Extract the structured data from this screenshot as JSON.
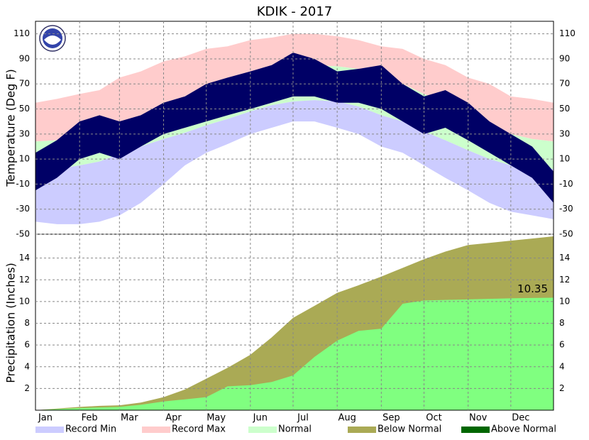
{
  "title": "KDIK - 2017",
  "legend": [
    {
      "name": "Record Min",
      "color": "#ccccff"
    },
    {
      "name": "Record Max",
      "color": "#ffcccc"
    },
    {
      "name": "Normal",
      "color": "#ccffcc"
    },
    {
      "name": "Below Normal",
      "color": "#aaaa55"
    },
    {
      "name": "Above Normal",
      "color": "#006600"
    }
  ],
  "chart_data": [
    {
      "type": "band",
      "y_label": "Temperature (Deg F)",
      "x": [
        1,
        16,
        32,
        46,
        60,
        75,
        91,
        106,
        121,
        136,
        152,
        167,
        182,
        197,
        213,
        228,
        244,
        259,
        274,
        289,
        305,
        320,
        335,
        350,
        365
      ],
      "xlim": [
        1,
        365
      ],
      "ylim": [
        -50,
        120
      ],
      "yticks": [
        -50,
        -30,
        -10,
        10,
        30,
        50,
        70,
        90,
        110
      ],
      "grid": true,
      "record_max": [
        55,
        58,
        62,
        65,
        75,
        80,
        88,
        92,
        98,
        100,
        105,
        107,
        110,
        110,
        108,
        105,
        100,
        98,
        90,
        85,
        75,
        70,
        60,
        58,
        55
      ],
      "record_min": [
        -40,
        -42,
        -42,
        -40,
        -35,
        -25,
        -10,
        5,
        15,
        22,
        30,
        35,
        40,
        40,
        35,
        30,
        20,
        15,
        5,
        -5,
        -15,
        -25,
        -32,
        -35,
        -38
      ],
      "normal_high": [
        24,
        25,
        28,
        32,
        38,
        45,
        52,
        60,
        66,
        71,
        76,
        80,
        84,
        85,
        84,
        82,
        76,
        70,
        62,
        55,
        45,
        37,
        30,
        26,
        24
      ],
      "normal_low": [
        2,
        2,
        5,
        8,
        14,
        20,
        26,
        31,
        37,
        42,
        48,
        53,
        56,
        57,
        56,
        52,
        45,
        40,
        32,
        25,
        17,
        10,
        5,
        3,
        2
      ],
      "observed_high": [
        15,
        25,
        40,
        45,
        40,
        45,
        55,
        60,
        70,
        75,
        80,
        85,
        95,
        90,
        80,
        82,
        85,
        70,
        60,
        65,
        55,
        40,
        30,
        20,
        0
      ],
      "observed_low": [
        -15,
        -5,
        10,
        15,
        10,
        20,
        30,
        35,
        40,
        45,
        50,
        55,
        60,
        60,
        55,
        55,
        50,
        40,
        30,
        35,
        25,
        15,
        5,
        -5,
        -25
      ],
      "colors": {
        "record_max": "#ffcccc",
        "record_min": "#ccccff",
        "normal": "#ccffcc",
        "observed": "#000066"
      }
    },
    {
      "type": "area",
      "y_label": "Precipitation (Inches)",
      "x": [
        1,
        16,
        32,
        46,
        60,
        75,
        91,
        106,
        121,
        136,
        152,
        167,
        182,
        197,
        213,
        228,
        244,
        259,
        274,
        289,
        305,
        320,
        335,
        350,
        365
      ],
      "xlim": [
        1,
        365
      ],
      "xticks": [
        {
          "value": 1,
          "label": "Jan"
        },
        {
          "value": 32,
          "label": "Feb"
        },
        {
          "value": 60,
          "label": "Mar"
        },
        {
          "value": 91,
          "label": "Apr"
        },
        {
          "value": 121,
          "label": "May"
        },
        {
          "value": 152,
          "label": "Jun"
        },
        {
          "value": 182,
          "label": "Jul"
        },
        {
          "value": 213,
          "label": "Aug"
        },
        {
          "value": 244,
          "label": "Sep"
        },
        {
          "value": 274,
          "label": "Oct"
        },
        {
          "value": 305,
          "label": "Nov"
        },
        {
          "value": 335,
          "label": "Dec"
        }
      ],
      "ylim": [
        0,
        16.2
      ],
      "yticks": [
        2,
        4,
        6,
        8,
        10,
        12,
        14
      ],
      "grid": true,
      "series": [
        {
          "color": "#aaaa55",
          "values": [
            0,
            0.15,
            0.3,
            0.4,
            0.45,
            0.7,
            1.2,
            1.9,
            2.9,
            3.9,
            5.1,
            6.7,
            8.5,
            9.6,
            10.8,
            11.5,
            12.3,
            13.1,
            13.9,
            14.6,
            15.2,
            15.4,
            15.6,
            15.8,
            16.0
          ]
        },
        {
          "color": "#80ff80",
          "values": [
            0,
            0.1,
            0.2,
            0.25,
            0.3,
            0.5,
            0.8,
            1.0,
            1.2,
            2.2,
            2.3,
            2.6,
            3.2,
            4.9,
            6.4,
            7.3,
            7.5,
            9.8,
            10.1,
            10.15,
            10.2,
            10.25,
            10.3,
            10.33,
            10.35
          ]
        }
      ],
      "annotations": [
        "10.35"
      ]
    }
  ]
}
